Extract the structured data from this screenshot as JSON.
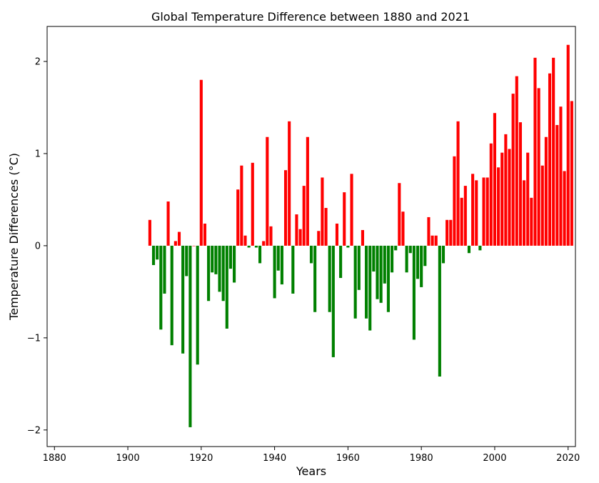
{
  "chart_data": {
    "type": "bar",
    "title": "Global Temperature Difference between 1880 and 2021",
    "xlabel": "Years",
    "ylabel": "Temperature Differences (°C)",
    "xlim": [
      1878,
      2022
    ],
    "ylim": [
      -2.18,
      2.38
    ],
    "xticks": [
      1880,
      1900,
      1920,
      1940,
      1960,
      1980,
      2000,
      2020
    ],
    "yticks": [
      -2,
      -1,
      0,
      1,
      2
    ],
    "ytick_labels": [
      "−2",
      "−1",
      "0",
      "1",
      "2"
    ],
    "positive_color": "#ff0000",
    "negative_color": "#008000",
    "grid": false,
    "x": [
      1906,
      1907,
      1908,
      1909,
      1910,
      1911,
      1912,
      1913,
      1914,
      1915,
      1916,
      1917,
      1918,
      1919,
      1920,
      1921,
      1922,
      1923,
      1924,
      1925,
      1926,
      1927,
      1928,
      1929,
      1930,
      1931,
      1932,
      1933,
      1934,
      1935,
      1936,
      1937,
      1938,
      1939,
      1940,
      1941,
      1942,
      1943,
      1944,
      1945,
      1946,
      1947,
      1948,
      1949,
      1950,
      1951,
      1952,
      1953,
      1954,
      1955,
      1956,
      1957,
      1958,
      1959,
      1960,
      1961,
      1962,
      1963,
      1964,
      1965,
      1966,
      1967,
      1968,
      1969,
      1970,
      1971,
      1972,
      1973,
      1974,
      1975,
      1976,
      1977,
      1978,
      1979,
      1980,
      1981,
      1982,
      1983,
      1984,
      1985,
      1986,
      1987,
      1988,
      1989,
      1990,
      1991,
      1992,
      1993,
      1994,
      1995,
      1996,
      1997,
      1998,
      1999,
      2000,
      2001,
      2002,
      2003,
      2004,
      2005,
      2006,
      2007,
      2008,
      2009,
      2010,
      2011,
      2012,
      2013,
      2014,
      2015,
      2016,
      2017,
      2018,
      2019,
      2020,
      2021
    ],
    "values": [
      0.28,
      -0.21,
      -0.15,
      -0.91,
      -0.52,
      0.48,
      -1.08,
      0.05,
      0.15,
      -1.17,
      -0.33,
      -1.97,
      0.0,
      -1.29,
      1.8,
      0.24,
      -0.6,
      -0.29,
      -0.31,
      -0.5,
      -0.6,
      -0.9,
      -0.25,
      -0.4,
      0.61,
      0.87,
      0.11,
      -0.02,
      0.9,
      -0.02,
      -0.19,
      0.05,
      1.18,
      0.21,
      -0.57,
      -0.27,
      -0.42,
      0.82,
      1.35,
      -0.52,
      0.34,
      0.18,
      0.65,
      1.18,
      -0.19,
      -0.72,
      0.16,
      0.74,
      0.41,
      -0.72,
      -1.21,
      0.24,
      -0.35,
      0.58,
      -0.02,
      0.78,
      -0.79,
      -0.48,
      0.17,
      -0.79,
      -0.92,
      -0.28,
      -0.58,
      -0.62,
      -0.41,
      -0.72,
      -0.29,
      -0.05,
      0.68,
      0.37,
      -0.29,
      -0.08,
      -1.02,
      -0.36,
      -0.45,
      -0.22,
      0.31,
      0.11,
      0.11,
      -1.42,
      -0.19,
      0.28,
      0.28,
      0.97,
      1.35,
      0.52,
      0.65,
      -0.08,
      0.78,
      0.71,
      -0.05,
      0.74,
      0.74,
      1.11,
      1.44,
      0.85,
      1.01,
      1.21,
      1.05,
      1.65,
      1.84,
      1.34,
      0.71,
      1.01,
      0.52,
      2.04,
      1.71,
      0.87,
      1.18,
      1.87,
      2.04,
      1.31,
      1.51,
      0.81,
      2.18,
      1.57
    ]
  }
}
